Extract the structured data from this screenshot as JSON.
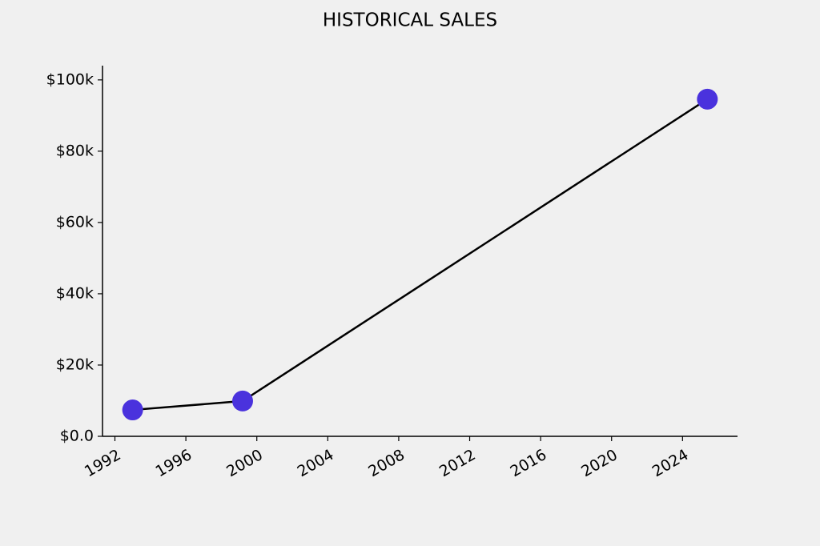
{
  "chart_data": {
    "type": "line",
    "title": "HISTORICAL SALES",
    "x": [
      1993,
      1999.2,
      2025.4
    ],
    "values": [
      7400,
      9900,
      94600
    ],
    "color": "#4a32dd",
    "line_color": "#000000",
    "xlim": [
      1991.3,
      2027.1
    ],
    "xticks": [
      1992,
      1996,
      2000,
      2004,
      2008,
      2012,
      2016,
      2020,
      2024
    ],
    "ylim": [
      0,
      104000
    ],
    "yticks": [
      {
        "value": 0,
        "label": "$0.0"
      },
      {
        "value": 20000,
        "label": "$20k"
      },
      {
        "value": 40000,
        "label": "$40k"
      },
      {
        "value": 60000,
        "label": "$60k"
      },
      {
        "value": 80000,
        "label": "$80k"
      },
      {
        "value": 100000,
        "label": "$100k"
      }
    ],
    "grid": false
  }
}
